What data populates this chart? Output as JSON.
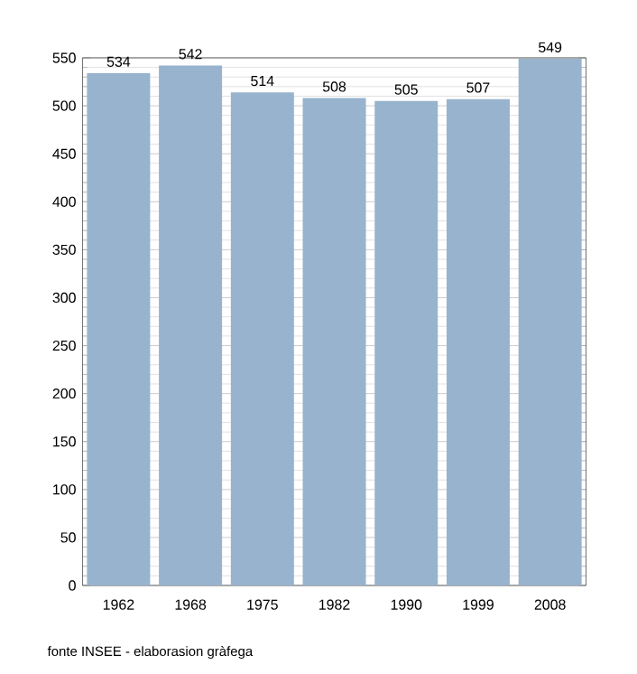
{
  "chart_data": {
    "type": "bar",
    "categories": [
      "1962",
      "1968",
      "1975",
      "1982",
      "1990",
      "1999",
      "2008"
    ],
    "values": [
      534,
      542,
      514,
      508,
      505,
      507,
      549
    ],
    "color": "#98b3cd",
    "data_labels": true,
    "grid": "y",
    "ylim": [
      0,
      550
    ],
    "yticks": [
      0,
      50,
      100,
      150,
      200,
      250,
      300,
      350,
      400,
      450,
      500,
      550
    ],
    "annotations": [
      "fonte INSEE - elaborasion gràfega"
    ]
  }
}
